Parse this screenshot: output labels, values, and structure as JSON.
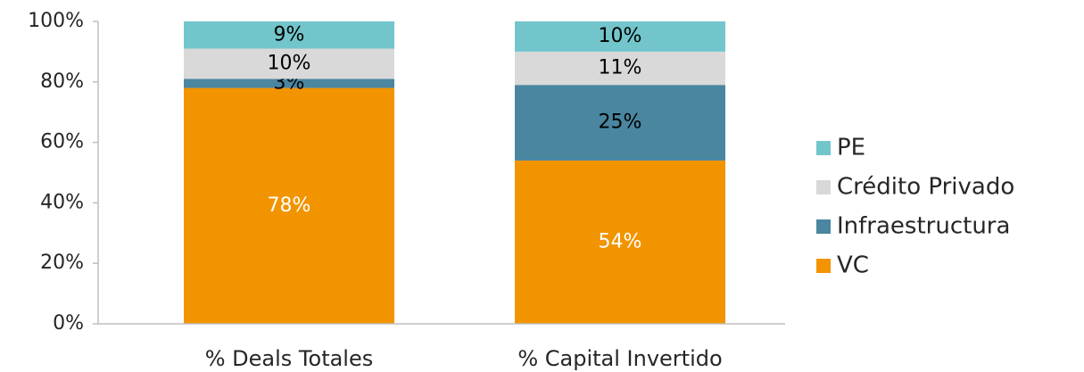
{
  "chart_data": {
    "type": "stacked_bar",
    "categories": [
      "% Deals Totales",
      "% Capital Invertido"
    ],
    "series": [
      {
        "name": "VC",
        "color": "#f29400",
        "label_color": "#ffffff",
        "values": [
          78,
          54
        ],
        "value_labels": [
          "78%",
          "54%"
        ]
      },
      {
        "name": "Infraestructura",
        "color": "#4a86a0",
        "label_color": "#000000",
        "values": [
          3,
          25
        ],
        "value_labels": [
          "3%",
          "25%"
        ]
      },
      {
        "name": "Crédito Privado",
        "color": "#d9d9d9",
        "label_color": "#000000",
        "values": [
          10,
          11
        ],
        "value_labels": [
          "10%",
          "11%"
        ]
      },
      {
        "name": "PE",
        "color": "#72c6cb",
        "label_color": "#000000",
        "values": [
          9,
          10
        ],
        "value_labels": [
          "9%",
          "10%"
        ]
      }
    ],
    "ylim": [
      0,
      100
    ],
    "yticks": [
      {
        "value": 0,
        "label": "0%"
      },
      {
        "value": 20,
        "label": "20%"
      },
      {
        "value": 40,
        "label": "40%"
      },
      {
        "value": 60,
        "label": "60%"
      },
      {
        "value": 80,
        "label": "80%"
      },
      {
        "value": 100,
        "label": "100%"
      }
    ],
    "legend": "right"
  }
}
